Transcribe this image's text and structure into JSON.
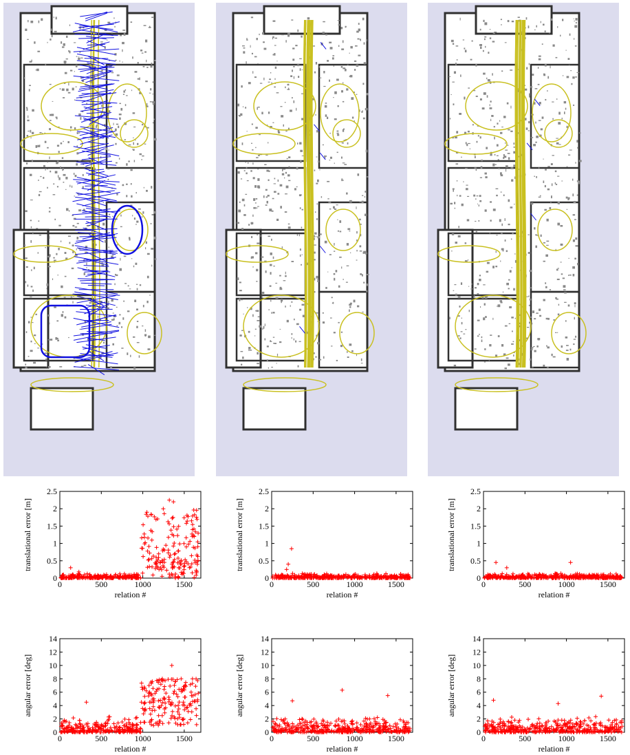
{
  "colors": {
    "background": "#dcdcee",
    "map_walls": "#303030",
    "map_floor": "#ffffff",
    "trajectory_yellow": "#c9c020",
    "error_edges_blue": "#1010e0",
    "marker_red": "#ff0000",
    "axis": "#000000"
  },
  "maps": [
    {
      "variant": "with many erroneous constraints (blue)",
      "blue_level": "high"
    },
    {
      "variant": "mostly consistent, few blue edges",
      "blue_level": "low"
    },
    {
      "variant": "consistent, very few blue edges",
      "blue_level": "minimal"
    }
  ],
  "chart_data": [
    {
      "type": "scatter",
      "marker": "+",
      "color": "#ff0000",
      "xlabel": "relation #",
      "ylabel": "translational error [m]",
      "xlim": [
        0,
        1700
      ],
      "ylim": [
        0,
        2.5
      ],
      "xticks": [
        0,
        500,
        1000,
        1500
      ],
      "yticks": [
        0,
        0.5,
        1,
        1.5,
        2,
        2.5
      ],
      "ytick_labels": [
        "0",
        "0.5",
        "1",
        "1.5",
        "2",
        "2.5"
      ],
      "pattern": "low error < 0.1 for relations 0–950, scattered high errors up to 2.25 for 1000–1680",
      "highlights": [
        [
          130,
          0.3
        ],
        [
          230,
          0.18
        ],
        [
          1050,
          1.9
        ],
        [
          1320,
          2.25
        ],
        [
          1370,
          2.2
        ],
        [
          1600,
          1.4
        ]
      ]
    },
    {
      "type": "scatter",
      "marker": "+",
      "color": "#ff0000",
      "xlabel": "relation #",
      "ylabel": "translational error [m]",
      "xlim": [
        0,
        1700
      ],
      "ylim": [
        0,
        2.5
      ],
      "xticks": [
        0,
        500,
        1000,
        1500
      ],
      "yticks": [
        0,
        0.5,
        1,
        1.5,
        2,
        2.5
      ],
      "ytick_labels": [
        "0",
        "0.5",
        "1",
        "1.5",
        "2",
        "2.5"
      ],
      "pattern": "errors mostly below 0.15 throughout",
      "highlights": [
        [
          240,
          0.85
        ],
        [
          200,
          0.4
        ],
        [
          180,
          0.25
        ]
      ]
    },
    {
      "type": "scatter",
      "marker": "+",
      "color": "#ff0000",
      "xlabel": "relation #",
      "ylabel": "translational error [m]",
      "xlim": [
        0,
        1700
      ],
      "ylim": [
        0,
        2.5
      ],
      "xticks": [
        0,
        500,
        1000,
        1500
      ],
      "yticks": [
        0,
        0.5,
        1,
        1.5,
        2,
        2.5
      ],
      "ytick_labels": [
        "0",
        "0.5",
        "1",
        "1.5",
        "2",
        "2.5"
      ],
      "pattern": "errors mostly below 0.15 throughout",
      "highlights": [
        [
          150,
          0.45
        ],
        [
          1050,
          0.45
        ],
        [
          280,
          0.3
        ]
      ]
    },
    {
      "type": "scatter",
      "marker": "+",
      "color": "#ff0000",
      "xlabel": "relation #",
      "ylabel": "angular error [deg]",
      "xlim": [
        0,
        1700
      ],
      "ylim": [
        0,
        14
      ],
      "xticks": [
        0,
        500,
        1000,
        1500
      ],
      "yticks": [
        0,
        2,
        4,
        6,
        8,
        10,
        12,
        14
      ],
      "ytick_labels": [
        "0",
        "2",
        "4",
        "6",
        "8",
        "10",
        "12",
        "14"
      ],
      "pattern": "errors around 0–2 for 0–950, 2–8 for 1000–1680",
      "highlights": [
        [
          320,
          4.5
        ],
        [
          1350,
          10.0
        ],
        [
          1100,
          7.5
        ],
        [
          1600,
          8.0
        ]
      ]
    },
    {
      "type": "scatter",
      "marker": "+",
      "color": "#ff0000",
      "xlabel": "relation #",
      "ylabel": "angular error [deg]",
      "xlim": [
        0,
        1700
      ],
      "ylim": [
        0,
        14
      ],
      "xticks": [
        0,
        500,
        1000,
        1500
      ],
      "yticks": [
        0,
        2,
        4,
        6,
        8,
        10,
        12,
        14
      ],
      "ytick_labels": [
        "0",
        "2",
        "4",
        "6",
        "8",
        "10",
        "12",
        "14"
      ],
      "pattern": "errors mostly 0–2 throughout",
      "highlights": [
        [
          850,
          6.3
        ],
        [
          1400,
          5.5
        ],
        [
          250,
          4.7
        ]
      ]
    },
    {
      "type": "scatter",
      "marker": "+",
      "color": "#ff0000",
      "xlabel": "relation #",
      "ylabel": "angular error [deg]",
      "xlim": [
        0,
        1700
      ],
      "ylim": [
        0,
        14
      ],
      "xticks": [
        0,
        500,
        1000,
        1500
      ],
      "yticks": [
        0,
        2,
        4,
        6,
        8,
        10,
        12,
        14
      ],
      "ytick_labels": [
        "0",
        "2",
        "4",
        "6",
        "8",
        "10",
        "12",
        "14"
      ],
      "pattern": "errors mostly 0–2 throughout",
      "highlights": [
        [
          120,
          4.8
        ],
        [
          1420,
          5.4
        ],
        [
          900,
          4.3
        ]
      ]
    }
  ]
}
